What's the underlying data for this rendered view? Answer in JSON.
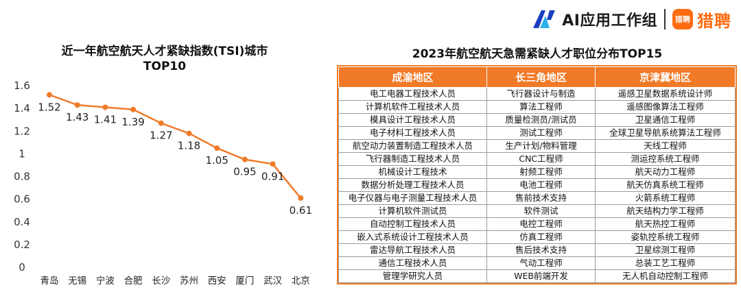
{
  "brand": {
    "ai_label": "AI应用工作组",
    "liepin_badge": "猎聘",
    "liepin_label": "猎聘",
    "accent": "#ff6b10"
  },
  "chart_data": {
    "type": "line",
    "title_line1": "近一年航空航天人才紧缺指数(TSI)城市",
    "title_line2": "TOP10",
    "categories": [
      "青岛",
      "无锡",
      "宁波",
      "合肥",
      "长沙",
      "苏州",
      "西安",
      "厦门",
      "武汉",
      "北京"
    ],
    "values": [
      1.52,
      1.43,
      1.41,
      1.39,
      1.27,
      1.18,
      1.05,
      0.95,
      0.91,
      0.61
    ],
    "value_labels": [
      "1.52",
      "1.43",
      "1.41",
      "1.39",
      "1.27",
      "1.18",
      "1.05",
      "0.95",
      "0.91",
      "0.61"
    ],
    "yticks": [
      "0",
      "0.2",
      "0.4",
      "0.6",
      "0.8",
      "1",
      "1.2",
      "1.4",
      "1.6"
    ],
    "ylim": [
      0,
      1.6
    ],
    "grid": false,
    "color": "#f07a28"
  },
  "table": {
    "title": "2023年航空航天急需紧缺人才职位分布TOP15",
    "header_color": "#f07a28",
    "headers": [
      "成渝地区",
      "长三角地区",
      "京津冀地区"
    ],
    "rows": [
      [
        "电工电器工程技术人员",
        "飞行器设计与制造",
        "遥感卫星数据系统设计师"
      ],
      [
        "计算机软件工程技术人员",
        "算法工程师",
        "遥感图像算法工程师"
      ],
      [
        "模具设计工程技术人员",
        "质量检测员/测试员",
        "卫星通信工程师"
      ],
      [
        "电子材料工程技术人员",
        "测试工程师",
        "全球卫星导航系统算法工程师"
      ],
      [
        "航空动力装置制造工程技术人员",
        "生产计划/物料管理",
        "天线工程师"
      ],
      [
        "飞行器制造工程技术人员",
        "CNC工程师",
        "测运控系统工程师"
      ],
      [
        "机械设计工程技术",
        "射频工程师",
        "航天动力工程师"
      ],
      [
        "数据分析处理工程技术人员",
        "电池工程师",
        "航天仿真系统工程师"
      ],
      [
        "电子仪器与电子测量工程技术人员",
        "售前技术支持",
        "火箭系统工程师"
      ],
      [
        "计算机软件测试员",
        "软件测试",
        "航天结构力学工程师"
      ],
      [
        "自动控制工程技术人员",
        "电控工程师",
        "航天热控工程师"
      ],
      [
        "嵌入式系统设计工程技术人员",
        "仿真工程师",
        "姿轨控系统工程师"
      ],
      [
        "雷达导航工程技术人员",
        "售后技术支持",
        "卫星综测工程师"
      ],
      [
        "通信工程技术人员",
        "气动工程师",
        "总装工艺工程师"
      ],
      [
        "管理学研究人员",
        "WEB前端开发",
        "无人机自动控制工程师"
      ]
    ]
  }
}
